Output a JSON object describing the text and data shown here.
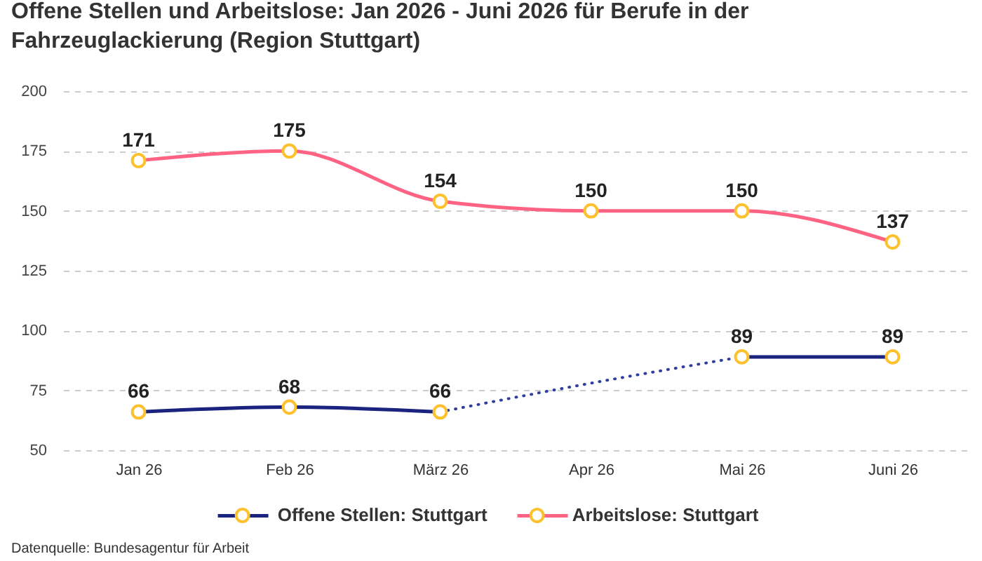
{
  "chart_data": {
    "type": "line",
    "title": "Offene Stellen und Arbeitslose: Jan 2026 - Juni 2026 für Berufe in der Fahrzeuglackierung (Region Stuttgart)",
    "categories": [
      "Jan 26",
      "Feb 26",
      "März 26",
      "Apr 26",
      "Mai 26",
      "Juni 26"
    ],
    "series": [
      {
        "name": "Offene Stellen: Stuttgart",
        "color": "#1a237e",
        "values": [
          66,
          68,
          66,
          null,
          89,
          89
        ]
      },
      {
        "name": "Arbeitslose: Stuttgart",
        "color": "#ff6384",
        "values": [
          171,
          175,
          154,
          150,
          150,
          137
        ]
      },
      {
        "color": "#303f9f",
        "values": [
          null,
          null,
          66,
          78,
          89,
          null
        ],
        "line_style": "dotted",
        "marker": "none",
        "value_labels": [
          null,
          null,
          null,
          null,
          null,
          null
        ]
      }
    ],
    "ylim": [
      50,
      200
    ],
    "yticks": [
      50,
      75,
      100,
      125,
      150,
      175,
      200
    ],
    "grid": "y",
    "legend": "bottom",
    "marker": "circle",
    "data_labels": true,
    "annotations": [
      "Datenquelle: Bundesagentur für Arbeit"
    ]
  }
}
